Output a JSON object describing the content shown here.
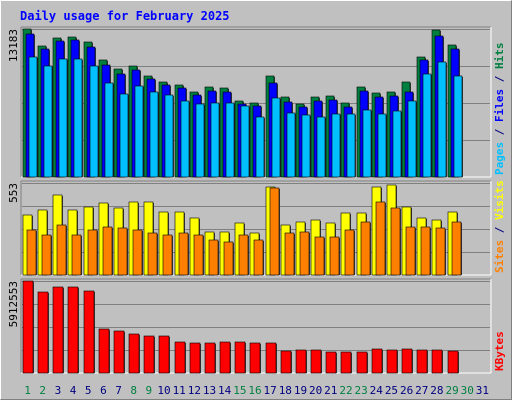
{
  "chart_data": {
    "type": "bar",
    "title": "Daily usage for February 2025",
    "x": [
      "1",
      "2",
      "3",
      "4",
      "5",
      "6",
      "7",
      "8",
      "9",
      "10",
      "11",
      "12",
      "13",
      "14",
      "15",
      "16",
      "17",
      "18",
      "19",
      "20",
      "21",
      "22",
      "23",
      "24",
      "25",
      "26",
      "27",
      "28",
      "29",
      "30",
      "31"
    ],
    "weekend_days": [
      "1",
      "2",
      "8",
      "9",
      "15",
      "16",
      "22",
      "23",
      "29",
      "30"
    ],
    "grid": true,
    "panels": [
      {
        "id": "hits-files-pages",
        "ytick": "13183",
        "ylim": [
          0,
          13183
        ],
        "axis_labels": [
          {
            "text": "Pages",
            "color": "#00c0ff"
          },
          {
            "text": " / ",
            "color": "#000080"
          },
          {
            "text": "Files",
            "color": "#0000ff"
          },
          {
            "text": " / ",
            "color": "#000080"
          },
          {
            "text": "Hits",
            "color": "#008040"
          }
        ],
        "series": [
          {
            "key": "hits",
            "color": "#008040",
            "values": [
              13183,
              11700,
              12400,
              12500,
              12000,
              10400,
              9600,
              9900,
              9000,
              8500,
              8200,
              7600,
              8000,
              7900,
              6800,
              6600,
              9000,
              7100,
              6500,
              7100,
              7200,
              6600,
              8000,
              7500,
              7600,
              8500,
              10700,
              13100,
              11800,
              0,
              0
            ]
          },
          {
            "key": "files",
            "color": "#0000ff",
            "values": [
              12700,
              11400,
              12100,
              12200,
              11600,
              10000,
              9200,
              9500,
              8700,
              8200,
              7900,
              7300,
              7700,
              7600,
              6500,
              6300,
              8400,
              6700,
              6200,
              6800,
              6900,
              6200,
              7700,
              7100,
              7200,
              7600,
              10400,
              12600,
              11400,
              0,
              0
            ]
          },
          {
            "key": "pages",
            "color": "#00c0ff",
            "values": [
              10700,
              9900,
              10500,
              10500,
              9900,
              8400,
              7400,
              8100,
              7600,
              7300,
              6800,
              6500,
              6600,
              6600,
              6300,
              5300,
              7000,
              5700,
              5500,
              5300,
              5600,
              5600,
              6000,
              5600,
              5900,
              6800,
              9200,
              10200,
              9000,
              0,
              0
            ]
          }
        ]
      },
      {
        "id": "visits-sites",
        "ytick": "553",
        "ylim": [
          0,
          553
        ],
        "axis_labels": [
          {
            "text": "Sites",
            "color": "#ff8000"
          },
          {
            "text": " / ",
            "color": "#000080"
          },
          {
            "text": "Visits",
            "color": "#ffff00"
          }
        ],
        "series": [
          {
            "key": "visits",
            "color": "#ffff00",
            "values": [
              360,
              390,
              480,
              390,
              410,
              430,
              400,
              440,
              440,
              380,
              380,
              340,
              260,
              260,
              310,
              250,
              530,
              300,
              320,
              330,
              310,
              370,
              370,
              530,
              540,
              410,
              340,
              330,
              380,
              0,
              0
            ]
          },
          {
            "key": "sites",
            "color": "#ff8000",
            "values": [
              270,
              240,
              300,
              240,
              270,
              290,
              280,
              270,
              250,
              240,
              250,
              240,
              210,
              200,
              240,
              210,
              520,
              250,
              260,
              230,
              230,
              270,
              320,
              440,
              400,
              290,
              290,
              280,
              320,
              0,
              0
            ]
          }
        ]
      },
      {
        "id": "kbytes",
        "ytick": "5912553",
        "ylim": [
          0,
          5912553
        ],
        "axis_labels": [
          {
            "text": "KBytes",
            "color": "#ff0000"
          }
        ],
        "series": [
          {
            "key": "kbytes",
            "color": "#ff0000",
            "values": [
              5912553,
              5200000,
              5550000,
              5550000,
              5300000,
              2800000,
              2700000,
              2500000,
              2400000,
              2400000,
              2000000,
              1900000,
              1900000,
              2000000,
              2000000,
              1900000,
              1900000,
              1400000,
              1450000,
              1450000,
              1350000,
              1350000,
              1380000,
              1550000,
              1450000,
              1550000,
              1450000,
              1450000,
              1400000,
              0,
              0
            ]
          }
        ]
      }
    ]
  },
  "colors": {
    "background": "#c0c0c0",
    "frame_light": "#ffffff",
    "frame_dark": "#808080",
    "title": "#0000ff",
    "weekday_label": "#000080",
    "weekend_label": "#008040",
    "grid": "#808080"
  }
}
